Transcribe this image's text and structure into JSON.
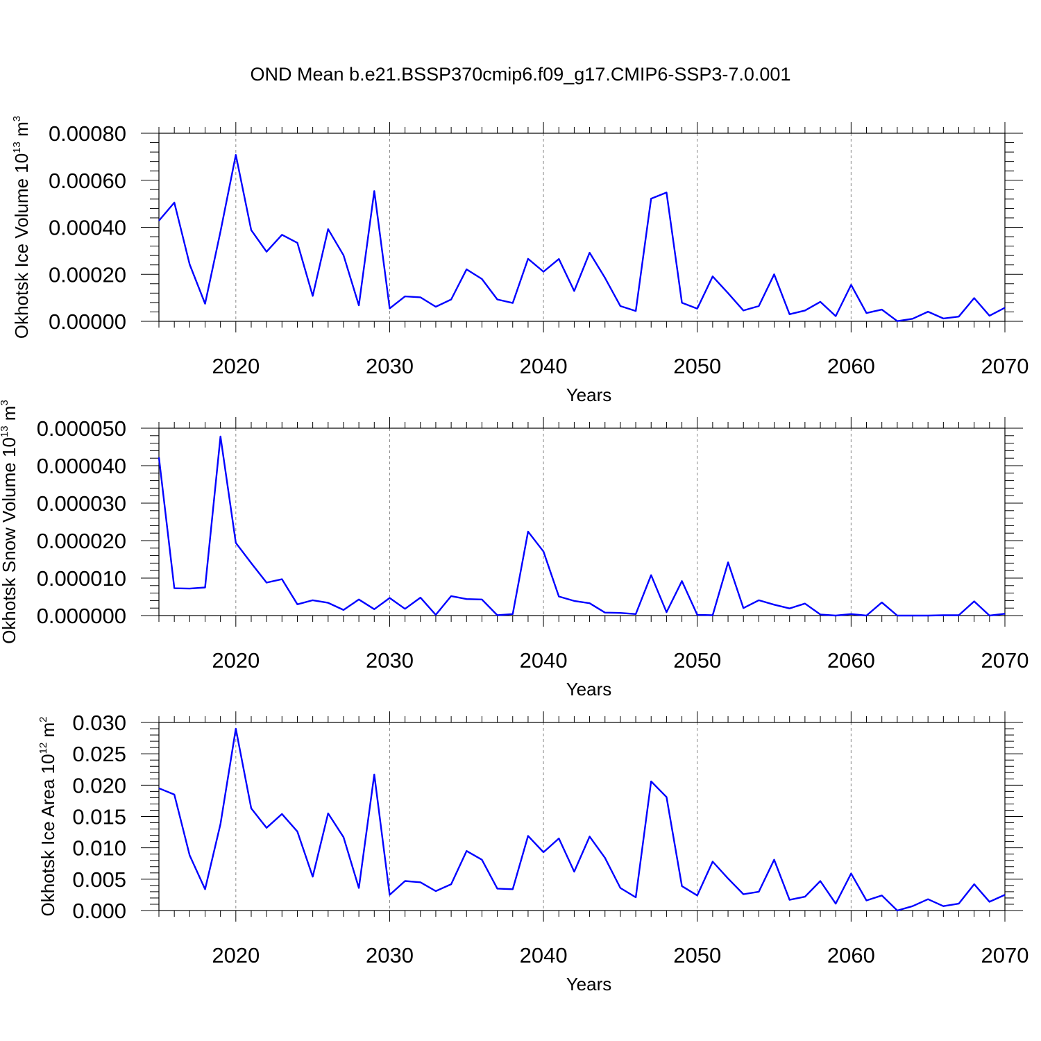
{
  "figure": {
    "title": "OND Mean b.e21.BSSP370cmip6.f09_g17.CMIP6-SSP3-7.0.001"
  },
  "chart_data": [
    {
      "type": "line",
      "title": "",
      "xlabel": "Years",
      "ylabel": {
        "text": "Okhotsk Ice Volume 10",
        "exponent": "13",
        "unit": " m",
        "unit_exponent": "3"
      },
      "xlim": [
        2015,
        2070
      ],
      "ylim": [
        0,
        0.0008
      ],
      "xticks": [
        2020,
        2030,
        2040,
        2050,
        2060,
        2070
      ],
      "xtick_labels": [
        "2020",
        "2030",
        "2040",
        "2050",
        "2060",
        "2070"
      ],
      "yticks": [
        0,
        0.0002,
        0.0004,
        0.0006,
        0.0008
      ],
      "ytick_labels": [
        "0.00000",
        "0.00020",
        "0.00040",
        "0.00060",
        "0.00080"
      ],
      "grid": "vertical dashed at major x ticks",
      "line_color": "#0000ff",
      "x": [
        2015,
        2016,
        2017,
        2018,
        2019,
        2020,
        2021,
        2022,
        2023,
        2024,
        2025,
        2026,
        2027,
        2028,
        2029,
        2030,
        2031,
        2032,
        2033,
        2034,
        2035,
        2036,
        2037,
        2038,
        2039,
        2040,
        2041,
        2042,
        2043,
        2044,
        2045,
        2046,
        2047,
        2048,
        2049,
        2050,
        2051,
        2052,
        2053,
        2054,
        2055,
        2056,
        2057,
        2058,
        2059,
        2060,
        2061,
        2062,
        2063,
        2064,
        2065,
        2066,
        2067,
        2068,
        2069,
        2070
      ],
      "series": [
        {
          "values": [
            0.000428,
            0.000505,
            0.000242,
            7.5e-05,
            0.000382,
            0.000708,
            0.000388,
            0.000296,
            0.000368,
            0.000334,
            0.000108,
            0.000392,
            0.000281,
            6.8e-05,
            0.000554,
            5.5e-05,
            0.000106,
            0.000102,
            6.2e-05,
            9.3e-05,
            0.000221,
            0.00018,
            9.3e-05,
            7.8e-05,
            0.000266,
            0.000211,
            0.000265,
            0.000129,
            0.000292,
            0.000185,
            6.5e-05,
            4.4e-05,
            0.000522,
            0.000548,
            7.9e-05,
            5.4e-05,
            0.000191,
            0.00012,
            4.6e-05,
            6.5e-05,
            0.0002,
            3e-05,
            4.6e-05,
            8.3e-05,
            2.2e-05,
            0.000155,
            3.5e-05,
            5e-05,
            1e-06,
            1.1e-05,
            4.1e-05,
            1.2e-05,
            2e-05,
            9.9e-05,
            2.4e-05,
            5.8e-05
          ]
        }
      ]
    },
    {
      "type": "line",
      "title": "",
      "xlabel": "Years",
      "ylabel": {
        "text": "Okhotsk Snow Volume 10",
        "exponent": "13",
        "unit": " m",
        "unit_exponent": "3"
      },
      "xlim": [
        2015,
        2070
      ],
      "ylim": [
        0,
        5e-05
      ],
      "xticks": [
        2020,
        2030,
        2040,
        2050,
        2060,
        2070
      ],
      "xtick_labels": [
        "2020",
        "2030",
        "2040",
        "2050",
        "2060",
        "2070"
      ],
      "yticks": [
        0,
        1e-05,
        2e-05,
        3e-05,
        4e-05,
        5e-05
      ],
      "ytick_labels": [
        "0.000000",
        "0.000010",
        "0.000020",
        "0.000030",
        "0.000040",
        "0.000050"
      ],
      "grid": "vertical dashed at major x ticks",
      "line_color": "#0000ff",
      "x": [
        2015,
        2016,
        2017,
        2018,
        2019,
        2020,
        2021,
        2022,
        2023,
        2024,
        2025,
        2026,
        2027,
        2028,
        2029,
        2030,
        2031,
        2032,
        2033,
        2034,
        2035,
        2036,
        2037,
        2038,
        2039,
        2040,
        2041,
        2042,
        2043,
        2044,
        2045,
        2046,
        2047,
        2048,
        2049,
        2050,
        2051,
        2052,
        2053,
        2054,
        2055,
        2056,
        2057,
        2058,
        2059,
        2060,
        2061,
        2062,
        2063,
        2064,
        2065,
        2066,
        2067,
        2068,
        2069,
        2070
      ],
      "series": [
        {
          "values": [
            4.22e-05,
            7.3e-06,
            7.2e-06,
            7.5e-06,
            4.78e-05,
            1.94e-05,
            1.4e-05,
            8.8e-06,
            9.7e-06,
            3e-06,
            4.1e-06,
            3.4e-06,
            1.5e-06,
            4.3e-06,
            1.7e-06,
            4.7e-06,
            1.8e-06,
            4.8e-06,
            2e-07,
            5.2e-06,
            4.4e-06,
            4.3e-06,
            1e-07,
            4e-07,
            2.24e-05,
            1.71e-05,
            5.1e-06,
            3.9e-06,
            3.3e-06,
            8e-07,
            7e-07,
            4e-07,
            1.08e-05,
            9e-07,
            9.2e-06,
            2e-07,
            1e-07,
            1.42e-05,
            2e-06,
            4.1e-06,
            2.9e-06,
            1.9e-06,
            3.2e-06,
            3e-07,
            0.0,
            4e-07,
            0.0,
            3.5e-06,
            0.0,
            0.0,
            0.0,
            1e-07,
            1e-07,
            3.8e-06,
            0.0,
            5e-07
          ]
        }
      ]
    },
    {
      "type": "line",
      "title": "",
      "xlabel": "Years",
      "ylabel": {
        "text": "Okhotsk Ice Area 10",
        "exponent": "12",
        "unit": " m",
        "unit_exponent": "2"
      },
      "xlim": [
        2015,
        2070
      ],
      "ylim": [
        0,
        0.03
      ],
      "xticks": [
        2020,
        2030,
        2040,
        2050,
        2060,
        2070
      ],
      "xtick_labels": [
        "2020",
        "2030",
        "2040",
        "2050",
        "2060",
        "2070"
      ],
      "yticks": [
        0,
        0.005,
        0.01,
        0.015,
        0.02,
        0.025,
        0.03
      ],
      "ytick_labels": [
        "0.000",
        "0.005",
        "0.010",
        "0.015",
        "0.020",
        "0.025",
        "0.030"
      ],
      "grid": "vertical dashed at major x ticks",
      "line_color": "#0000ff",
      "x": [
        2015,
        2016,
        2017,
        2018,
        2019,
        2020,
        2021,
        2022,
        2023,
        2024,
        2025,
        2026,
        2027,
        2028,
        2029,
        2030,
        2031,
        2032,
        2033,
        2034,
        2035,
        2036,
        2037,
        2038,
        2039,
        2040,
        2041,
        2042,
        2043,
        2044,
        2045,
        2046,
        2047,
        2048,
        2049,
        2050,
        2051,
        2052,
        2053,
        2054,
        2055,
        2056,
        2057,
        2058,
        2059,
        2060,
        2061,
        2062,
        2063,
        2064,
        2065,
        2066,
        2067,
        2068,
        2069,
        2070
      ],
      "series": [
        {
          "values": [
            0.0195,
            0.0185,
            0.0088,
            0.0034,
            0.0138,
            0.029,
            0.0163,
            0.0132,
            0.0154,
            0.0126,
            0.0054,
            0.0155,
            0.0117,
            0.0036,
            0.0217,
            0.0025,
            0.0047,
            0.0045,
            0.0031,
            0.0042,
            0.0095,
            0.0081,
            0.0035,
            0.0034,
            0.0119,
            0.0093,
            0.0115,
            0.0062,
            0.0118,
            0.0084,
            0.0036,
            0.0021,
            0.0206,
            0.0181,
            0.0039,
            0.0024,
            0.0078,
            0.0051,
            0.0026,
            0.003,
            0.0081,
            0.0017,
            0.0022,
            0.0047,
            0.0011,
            0.0059,
            0.0016,
            0.0024,
            0.0,
            0.0007,
            0.0018,
            0.0007,
            0.0011,
            0.0042,
            0.0014,
            0.0025
          ]
        }
      ]
    }
  ]
}
